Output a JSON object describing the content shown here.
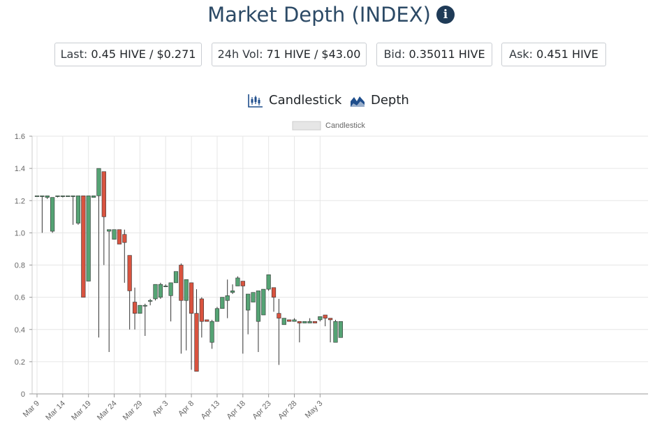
{
  "header": {
    "title": "Market Depth (INDEX)",
    "info_icon": "info-icon"
  },
  "stats": [
    {
      "label": "Last:",
      "value": "0.45 HIVE / $0.271"
    },
    {
      "label": "24h Vol:",
      "value": "71 HIVE / $43.00"
    },
    {
      "label": "Bid:",
      "value": "0.35011 HIVE"
    },
    {
      "label": "Ask:",
      "value": "0.451 HIVE"
    }
  ],
  "tabs": [
    {
      "label": "Candlestick",
      "icon": "candlestick-icon"
    },
    {
      "label": "Depth",
      "icon": "depth-chart-icon"
    }
  ],
  "colors": {
    "up": "#55a374",
    "down": "#d9533f",
    "title": "#2c4a66",
    "grid": "#e6e6e6"
  },
  "chart_data": {
    "type": "candlestick",
    "legend": {
      "label": "Candlestick",
      "position": "top-center"
    },
    "ylim": [
      0,
      1.6
    ],
    "yticks": [
      "0",
      "0.2",
      "0.4",
      "0.6",
      "0.8",
      "1.0",
      "1.2",
      "1.4",
      "1.6"
    ],
    "xticks": [
      "Mar 9",
      "Mar 14",
      "Mar 19",
      "Mar 24",
      "Mar 29",
      "Apr 3",
      "Apr 8",
      "Apr 13",
      "Apr 18",
      "Apr 23",
      "Apr 28",
      "May 3"
    ],
    "grid": true,
    "candles": [
      {
        "date": "Mar 9",
        "o": 1.23,
        "h": 1.23,
        "l": 1.23,
        "c": 1.23
      },
      {
        "date": "Mar 10",
        "o": 1.23,
        "h": 1.23,
        "l": 1.0,
        "c": 1.23
      },
      {
        "date": "Mar 11",
        "o": 1.22,
        "h": 1.23,
        "l": 1.21,
        "c": 1.23
      },
      {
        "date": "Mar 12",
        "o": 1.01,
        "h": 1.22,
        "l": 1.0,
        "c": 1.22
      },
      {
        "date": "Mar 13",
        "o": 1.23,
        "h": 1.23,
        "l": 1.22,
        "c": 1.23
      },
      {
        "date": "Mar 14",
        "o": 1.23,
        "h": 1.23,
        "l": 1.22,
        "c": 1.23
      },
      {
        "date": "Mar 15",
        "o": 1.23,
        "h": 1.23,
        "l": 1.23,
        "c": 1.23
      },
      {
        "date": "Mar 16",
        "o": 1.23,
        "h": 1.23,
        "l": 1.05,
        "c": 1.23
      },
      {
        "date": "Mar 17",
        "o": 1.06,
        "h": 1.23,
        "l": 1.05,
        "c": 1.23
      },
      {
        "date": "Mar 18",
        "o": 1.23,
        "h": 1.23,
        "l": 0.6,
        "c": 0.6
      },
      {
        "date": "Mar 19",
        "o": 0.7,
        "h": 1.23,
        "l": 0.7,
        "c": 1.23
      },
      {
        "date": "Mar 20",
        "o": 1.22,
        "h": 1.23,
        "l": 1.22,
        "c": 1.23
      },
      {
        "date": "Mar 21",
        "o": 1.23,
        "h": 1.4,
        "l": 0.35,
        "c": 1.4
      },
      {
        "date": "Mar 22",
        "o": 1.38,
        "h": 1.38,
        "l": 0.8,
        "c": 1.1
      },
      {
        "date": "Mar 23",
        "o": 1.01,
        "h": 1.02,
        "l": 0.26,
        "c": 1.02
      },
      {
        "date": "Mar 24",
        "o": 0.96,
        "h": 1.02,
        "l": 0.96,
        "c": 1.02
      },
      {
        "date": "Mar 25",
        "o": 1.02,
        "h": 1.02,
        "l": 0.93,
        "c": 0.93
      },
      {
        "date": "Mar 26",
        "o": 0.99,
        "h": 1.02,
        "l": 0.69,
        "c": 0.94
      },
      {
        "date": "Mar 27",
        "o": 0.86,
        "h": 0.86,
        "l": 0.4,
        "c": 0.64
      },
      {
        "date": "Mar 28",
        "o": 0.57,
        "h": 0.66,
        "l": 0.4,
        "c": 0.5
      },
      {
        "date": "Mar 29",
        "o": 0.5,
        "h": 0.55,
        "l": 0.5,
        "c": 0.55
      },
      {
        "date": "Mar 30",
        "o": 0.55,
        "h": 0.56,
        "l": 0.36,
        "c": 0.55
      },
      {
        "date": "Mar 31",
        "o": 0.58,
        "h": 0.59,
        "l": 0.55,
        "c": 0.58
      },
      {
        "date": "Apr 1",
        "o": 0.59,
        "h": 0.68,
        "l": 0.58,
        "c": 0.68
      },
      {
        "date": "Apr 2",
        "o": 0.6,
        "h": 0.69,
        "l": 0.59,
        "c": 0.68
      },
      {
        "date": "Apr 3",
        "o": 0.67,
        "h": 0.68,
        "l": 0.67,
        "c": 0.67
      },
      {
        "date": "Apr 4",
        "o": 0.61,
        "h": 0.69,
        "l": 0.45,
        "c": 0.69
      },
      {
        "date": "Apr 5",
        "o": 0.69,
        "h": 0.76,
        "l": 0.69,
        "c": 0.76
      },
      {
        "date": "Apr 6",
        "o": 0.8,
        "h": 0.81,
        "l": 0.25,
        "c": 0.58
      },
      {
        "date": "Apr 7",
        "o": 0.58,
        "h": 0.71,
        "l": 0.27,
        "c": 0.71
      },
      {
        "date": "Apr 8",
        "o": 0.69,
        "h": 0.69,
        "l": 0.15,
        "c": 0.5
      },
      {
        "date": "Apr 9",
        "o": 0.5,
        "h": 0.65,
        "l": 0.14,
        "c": 0.14
      },
      {
        "date": "Apr 10",
        "o": 0.59,
        "h": 0.6,
        "l": 0.35,
        "c": 0.45
      },
      {
        "date": "Apr 11",
        "o": 0.46,
        "h": 0.46,
        "l": 0.45,
        "c": 0.45
      },
      {
        "date": "Apr 12",
        "o": 0.32,
        "h": 0.46,
        "l": 0.28,
        "c": 0.45
      },
      {
        "date": "Apr 13",
        "o": 0.45,
        "h": 0.54,
        "l": 0.45,
        "c": 0.53
      },
      {
        "date": "Apr 14",
        "o": 0.53,
        "h": 0.6,
        "l": 0.53,
        "c": 0.6
      },
      {
        "date": "Apr 15",
        "o": 0.58,
        "h": 0.71,
        "l": 0.47,
        "c": 0.61
      },
      {
        "date": "Apr 16",
        "o": 0.63,
        "h": 0.68,
        "l": 0.62,
        "c": 0.64
      },
      {
        "date": "Apr 17",
        "o": 0.67,
        "h": 0.73,
        "l": 0.67,
        "c": 0.72
      },
      {
        "date": "Apr 18",
        "o": 0.7,
        "h": 0.7,
        "l": 0.25,
        "c": 0.67
      },
      {
        "date": "Apr 19",
        "o": 0.52,
        "h": 0.62,
        "l": 0.37,
        "c": 0.62
      },
      {
        "date": "Apr 20",
        "o": 0.57,
        "h": 0.63,
        "l": 0.57,
        "c": 0.63
      },
      {
        "date": "Apr 21",
        "o": 0.45,
        "h": 0.64,
        "l": 0.26,
        "c": 0.64
      },
      {
        "date": "Apr 22",
        "o": 0.49,
        "h": 0.65,
        "l": 0.49,
        "c": 0.65
      },
      {
        "date": "Apr 23",
        "o": 0.65,
        "h": 0.74,
        "l": 0.64,
        "c": 0.74
      },
      {
        "date": "Apr 24",
        "o": 0.66,
        "h": 0.66,
        "l": 0.51,
        "c": 0.6
      },
      {
        "date": "Apr 25",
        "o": 0.5,
        "h": 0.59,
        "l": 0.18,
        "c": 0.47
      },
      {
        "date": "Apr 26",
        "o": 0.43,
        "h": 0.47,
        "l": 0.43,
        "c": 0.47
      },
      {
        "date": "Apr 27",
        "o": 0.46,
        "h": 0.46,
        "l": 0.45,
        "c": 0.45
      },
      {
        "date": "Apr 28",
        "o": 0.45,
        "h": 0.47,
        "l": 0.45,
        "c": 0.46
      },
      {
        "date": "Apr 29",
        "o": 0.45,
        "h": 0.45,
        "l": 0.32,
        "c": 0.44
      },
      {
        "date": "Apr 30",
        "o": 0.44,
        "h": 0.45,
        "l": 0.44,
        "c": 0.45
      },
      {
        "date": "May 1",
        "o": 0.44,
        "h": 0.47,
        "l": 0.44,
        "c": 0.45
      },
      {
        "date": "May 2",
        "o": 0.45,
        "h": 0.45,
        "l": 0.44,
        "c": 0.44
      },
      {
        "date": "May 3",
        "o": 0.46,
        "h": 0.48,
        "l": 0.45,
        "c": 0.48
      },
      {
        "date": "May 4",
        "o": 0.49,
        "h": 0.49,
        "l": 0.42,
        "c": 0.47
      },
      {
        "date": "May 5",
        "o": 0.47,
        "h": 0.47,
        "l": 0.32,
        "c": 0.46
      },
      {
        "date": "May 6",
        "o": 0.32,
        "h": 0.46,
        "l": 0.32,
        "c": 0.45
      },
      {
        "date": "May 7",
        "o": 0.35,
        "h": 0.45,
        "l": 0.35,
        "c": 0.45
      }
    ]
  }
}
